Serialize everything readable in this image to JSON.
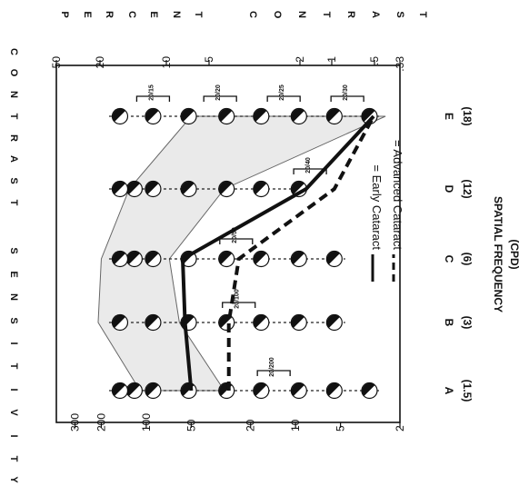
{
  "chart_data": {
    "type": "line",
    "orientation": "rotated 90 degrees clockwise",
    "x_axis": {
      "title": "SPATIAL FREQUENCY",
      "subtitle": "(CPD)",
      "letters": [
        "A",
        "B",
        "C",
        "D",
        "E"
      ],
      "cpd": [
        "(1.5)",
        "(3)",
        "(6)",
        "(12)",
        "(18)"
      ],
      "values": [
        1.5,
        3,
        6,
        12,
        18
      ]
    },
    "y_axis_left": {
      "title_letters": [
        "C",
        "O",
        "N",
        "T",
        "R",
        "A",
        "S",
        "T",
        "S",
        "E",
        "N",
        "S",
        "I",
        "T",
        "I",
        "V",
        "I",
        "T",
        "Y"
      ],
      "scale": "log",
      "ticks": [
        300,
        200,
        100,
        50,
        20,
        10,
        5,
        2
      ],
      "tick_labels": [
        "300",
        "200",
        "100",
        "50",
        "20",
        "10",
        "5",
        "2"
      ],
      "range": [
        2,
        400
      ]
    },
    "y_axis_right": {
      "title_letters": [
        "P",
        "E",
        "R",
        "C",
        "E",
        "N",
        "T",
        "C",
        "O",
        "N",
        "T",
        "R",
        "A",
        "S",
        "T"
      ],
      "scale": "log",
      "ticks": [
        0.33,
        0.5,
        1,
        2,
        5,
        10,
        20,
        50
      ],
      "tick_labels": [
        ".33",
        ".5",
        "1",
        "2",
        "5",
        "10",
        "20",
        "50"
      ]
    },
    "patch_rows": [
      150,
      90,
      52,
      29,
      17,
      9.5,
      5.5,
      3.2
    ],
    "columns": [
      {
        "letter": "A",
        "rows": [
          0,
          1,
          2,
          3,
          4,
          5,
          6,
          7,
          8
        ]
      },
      {
        "letter": "B",
        "rows": [
          1,
          2,
          3,
          4,
          5,
          6,
          7
        ]
      },
      {
        "letter": "C",
        "rows": [
          0,
          1,
          2,
          3,
          4,
          5,
          6,
          7
        ]
      },
      {
        "letter": "D",
        "rows": [
          0,
          1,
          2,
          3,
          4,
          5,
          6
        ]
      },
      {
        "letter": "E",
        "rows": [
          1,
          2,
          3,
          4,
          5,
          6,
          7,
          8
        ]
      }
    ],
    "extra_patch_rows_value": [
      120,
      34
    ],
    "series": [
      {
        "name": "Early Cataract",
        "style": "solid",
        "values": [
          50,
          55,
          57,
          8.5,
          3
        ]
      },
      {
        "name": "Advanced Cataract",
        "style": "dashed",
        "values": [
          28,
          28,
          24,
          5.5,
          3
        ]
      }
    ],
    "legend": {
      "items": [
        {
          "symbol": "solid",
          "label": "= Early Cataract"
        },
        {
          "symbol": "dashed",
          "label": "= Advanced Cataract"
        }
      ]
    },
    "acuity_brackets": [
      {
        "label": "20/200",
        "column": "A",
        "value": 14
      },
      {
        "label": "20/100",
        "column": "B",
        "value": 24
      },
      {
        "label": "20/50",
        "column": "C",
        "value": 25
      },
      {
        "label": "20/40",
        "column": "D",
        "value": 8
      },
      {
        "label": "20/15",
        "column": "E",
        "value": 90
      },
      {
        "label": "20/20",
        "column": "E",
        "value": 32
      },
      {
        "label": "20/25",
        "column": "E",
        "value": 12
      },
      {
        "label": "20/30",
        "column": "E",
        "value": 4.5
      }
    ],
    "normal_band": {
      "upper": [
        110,
        210,
        200,
        130,
        50
      ],
      "lower": [
        30,
        60,
        70,
        30,
        2.5
      ]
    },
    "grid": false
  }
}
